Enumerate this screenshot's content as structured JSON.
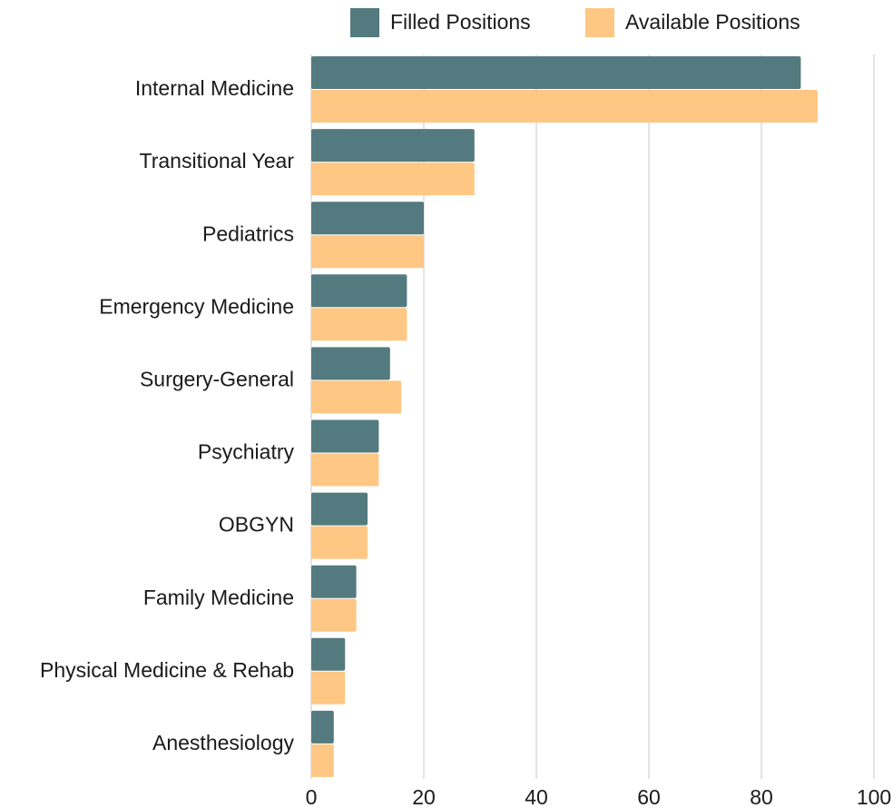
{
  "chart_data": {
    "type": "hbar",
    "categories": [
      "Internal Medicine",
      "Transitional Year",
      "Pediatrics",
      "Emergency Medicine",
      "Surgery-General",
      "Psychiatry",
      "OBGYN",
      "Family Medicine",
      "Physical Medicine & Rehab",
      "Anesthesiology"
    ],
    "series": [
      {
        "name": "Filled Positions",
        "color": "#537a7f",
        "values": [
          87,
          29,
          20,
          17,
          14,
          12,
          10,
          8,
          6,
          4
        ]
      },
      {
        "name": "Available Positions",
        "color": "#ffc784",
        "values": [
          90,
          29,
          20,
          17,
          16,
          12,
          10,
          8,
          6,
          4
        ]
      }
    ],
    "xlim": [
      0,
      100
    ],
    "xticks": [
      0,
      20,
      40,
      60,
      80,
      100
    ],
    "grid": true,
    "legend": "top"
  }
}
